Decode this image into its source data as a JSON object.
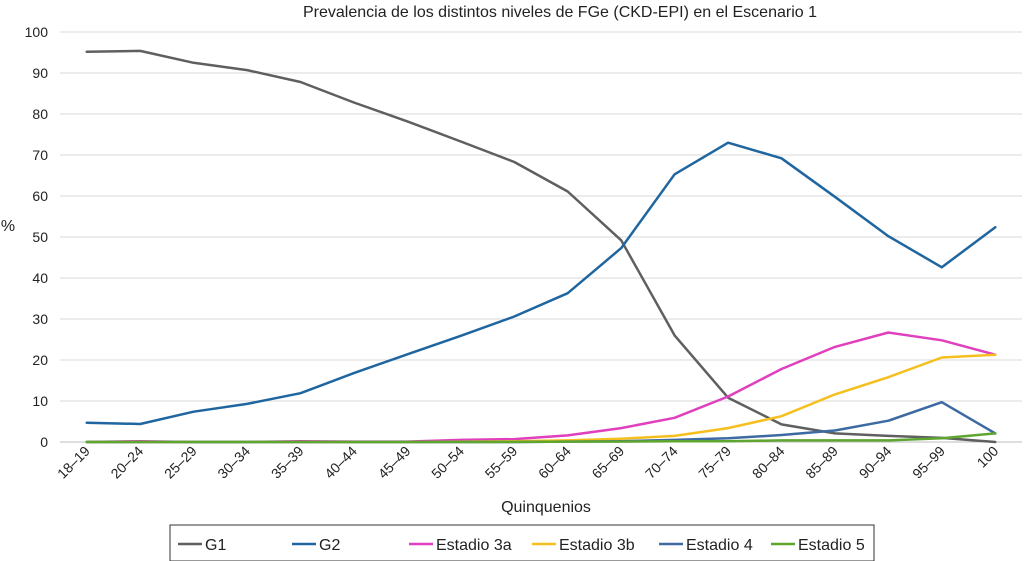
{
  "chart_data": {
    "type": "line",
    "title": "Prevalencia de los distintos niveles  de FGe (CKD-EPI) en el Escenario 1",
    "xlabel": "Quinquenios",
    "ylabel": "%",
    "ylim": [
      0,
      100
    ],
    "yticks": [
      0,
      10,
      20,
      30,
      40,
      50,
      60,
      70,
      80,
      90,
      100
    ],
    "grid": true,
    "legend_position": "bottom",
    "categories": [
      "18–19",
      "20–24",
      "25–29",
      "30–34",
      "35–39",
      "40–44",
      "45–49",
      "50–54",
      "55–59",
      "60–64",
      "65–69",
      "70–74",
      "75–79",
      "80–84",
      "85–89",
      "90–94",
      "95–99",
      "100"
    ],
    "series": [
      {
        "name": "G1",
        "color": "#5f5f5f",
        "values": [
          95.2,
          95.4,
          92.5,
          90.7,
          87.8,
          82.8,
          78.2,
          73.3,
          68.3,
          61.1,
          49.2,
          26.0,
          10.8,
          4.3,
          2.1,
          1.5,
          1.0,
          0
        ]
      },
      {
        "name": "G2",
        "color": "#1f66a0",
        "values": [
          4.7,
          4.4,
          7.4,
          9.3,
          11.9,
          16.8,
          21.4,
          25.9,
          30.6,
          36.3,
          47.3,
          65.3,
          73.0,
          69.2,
          59.8,
          50.2,
          42.6,
          52.4
        ]
      },
      {
        "name": "Estadio 3a",
        "color": "#e03fbd",
        "values": [
          0,
          0.2,
          0,
          0,
          0.2,
          0.1,
          0.1,
          0.5,
          0.7,
          1.6,
          3.4,
          5.9,
          11.1,
          17.8,
          23.2,
          26.7,
          24.8,
          21.3
        ]
      },
      {
        "name": "Estadio 3b",
        "color": "#f5bf1e",
        "values": [
          0,
          0,
          0,
          0,
          0,
          0,
          0,
          0.1,
          0.2,
          0.4,
          0.8,
          1.5,
          3.4,
          6.3,
          11.6,
          15.8,
          20.6,
          21.3
        ]
      },
      {
        "name": "Estadio 4",
        "color": "#3d6aa3",
        "values": [
          0,
          0,
          0,
          0,
          0,
          0,
          0,
          0,
          0,
          0.1,
          0.2,
          0.5,
          0.9,
          1.7,
          2.8,
          5.2,
          9.7,
          2.1
        ]
      },
      {
        "name": "Estadio 5",
        "color": "#5fa630",
        "values": [
          0,
          0,
          0,
          0,
          0,
          0,
          0,
          0,
          0,
          0.1,
          0.1,
          0.2,
          0.2,
          0.4,
          0.4,
          0.4,
          0.9,
          2.1
        ]
      }
    ]
  }
}
